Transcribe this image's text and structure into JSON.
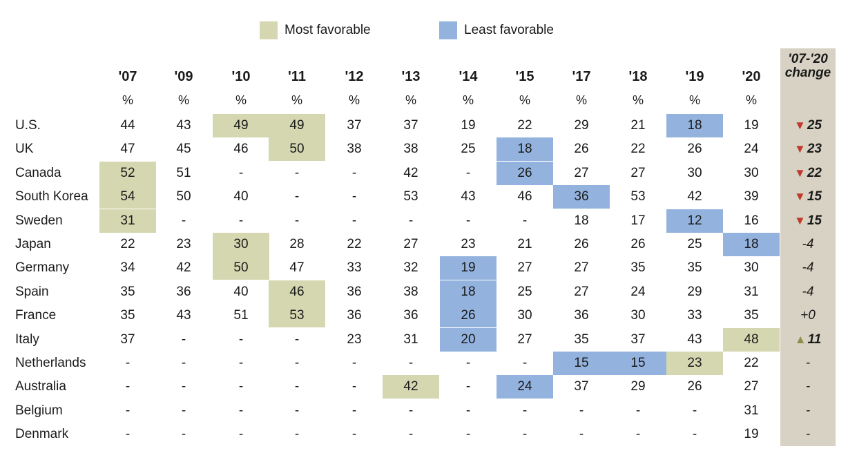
{
  "legend": {
    "most_label": "Most favorable",
    "least_label": "Least favorable",
    "most_color": "#d4d7b0",
    "least_color": "#93b3de"
  },
  "chart_data": {
    "type": "table",
    "columns": [
      "'07",
      "'09",
      "'10",
      "'11",
      "'12",
      "'13",
      "'14",
      "'15",
      "'17",
      "'18",
      "'19",
      "'20"
    ],
    "unit_row": "%",
    "change_header": [
      "'07-'20",
      "change"
    ],
    "rows": [
      {
        "label": "U.S.",
        "values": [
          "44",
          "43",
          "49",
          "49",
          "37",
          "37",
          "19",
          "22",
          "29",
          "21",
          "18",
          "19"
        ],
        "most": [
          2,
          3
        ],
        "least": [
          10
        ],
        "change": "25",
        "change_dir": "down"
      },
      {
        "label": "UK",
        "values": [
          "47",
          "45",
          "46",
          "50",
          "38",
          "38",
          "25",
          "18",
          "26",
          "22",
          "26",
          "24"
        ],
        "most": [
          3
        ],
        "least": [
          7
        ],
        "change": "23",
        "change_dir": "down"
      },
      {
        "label": "Canada",
        "values": [
          "52",
          "51",
          "-",
          "-",
          "-",
          "42",
          "-",
          "26",
          "27",
          "27",
          "30",
          "30"
        ],
        "most": [
          0
        ],
        "least": [
          7
        ],
        "change": "22",
        "change_dir": "down"
      },
      {
        "label": "South Korea",
        "values": [
          "54",
          "50",
          "40",
          "-",
          "-",
          "53",
          "43",
          "46",
          "36",
          "53",
          "42",
          "39"
        ],
        "most": [
          0
        ],
        "least": [
          8
        ],
        "change": "15",
        "change_dir": "down"
      },
      {
        "label": "Sweden",
        "values": [
          "31",
          "-",
          "-",
          "-",
          "-",
          "-",
          "-",
          "-",
          "18",
          "17",
          "12",
          "16"
        ],
        "most": [
          0
        ],
        "least": [
          10
        ],
        "change": "15",
        "change_dir": "down"
      },
      {
        "label": "Japan",
        "values": [
          "22",
          "23",
          "30",
          "28",
          "22",
          "27",
          "23",
          "21",
          "26",
          "26",
          "25",
          "18"
        ],
        "most": [
          2
        ],
        "least": [
          11
        ],
        "change": "-4",
        "change_dir": "none"
      },
      {
        "label": "Germany",
        "values": [
          "34",
          "42",
          "50",
          "47",
          "33",
          "32",
          "19",
          "27",
          "27",
          "35",
          "35",
          "30"
        ],
        "most": [
          2
        ],
        "least": [
          6
        ],
        "change": "-4",
        "change_dir": "none"
      },
      {
        "label": "Spain",
        "values": [
          "35",
          "36",
          "40",
          "46",
          "36",
          "38",
          "18",
          "25",
          "27",
          "24",
          "29",
          "31"
        ],
        "most": [
          3
        ],
        "least": [
          6
        ],
        "change": "-4",
        "change_dir": "none"
      },
      {
        "label": "France",
        "values": [
          "35",
          "43",
          "51",
          "53",
          "36",
          "36",
          "26",
          "30",
          "36",
          "30",
          "33",
          "35"
        ],
        "most": [
          3
        ],
        "least": [
          6
        ],
        "change": "+0",
        "change_dir": "none"
      },
      {
        "label": "Italy",
        "values": [
          "37",
          "-",
          "-",
          "-",
          "23",
          "31",
          "20",
          "27",
          "35",
          "37",
          "43",
          "48"
        ],
        "most": [
          11
        ],
        "least": [
          6
        ],
        "change": "11",
        "change_dir": "up"
      },
      {
        "label": "Netherlands",
        "values": [
          "-",
          "-",
          "-",
          "-",
          "-",
          "-",
          "-",
          "-",
          "15",
          "15",
          "23",
          "22"
        ],
        "most": [
          10
        ],
        "least": [
          8,
          9
        ],
        "change": "-",
        "change_dir": "none"
      },
      {
        "label": "Australia",
        "values": [
          "-",
          "-",
          "-",
          "-",
          "-",
          "42",
          "-",
          "24",
          "37",
          "29",
          "26",
          "27"
        ],
        "most": [
          5
        ],
        "least": [
          7
        ],
        "change": "-",
        "change_dir": "none"
      },
      {
        "label": "Belgium",
        "values": [
          "-",
          "-",
          "-",
          "-",
          "-",
          "-",
          "-",
          "-",
          "-",
          "-",
          "-",
          "31"
        ],
        "most": [],
        "least": [],
        "change": "-",
        "change_dir": "none"
      },
      {
        "label": "Denmark",
        "values": [
          "-",
          "-",
          "-",
          "-",
          "-",
          "-",
          "-",
          "-",
          "-",
          "-",
          "-",
          "19"
        ],
        "most": [],
        "least": [],
        "change": "-",
        "change_dir": "none"
      }
    ],
    "arrow_colors": {
      "down": "#c0392b",
      "up": "#8a8f4a"
    },
    "change_bg": "#d7d2c3"
  }
}
